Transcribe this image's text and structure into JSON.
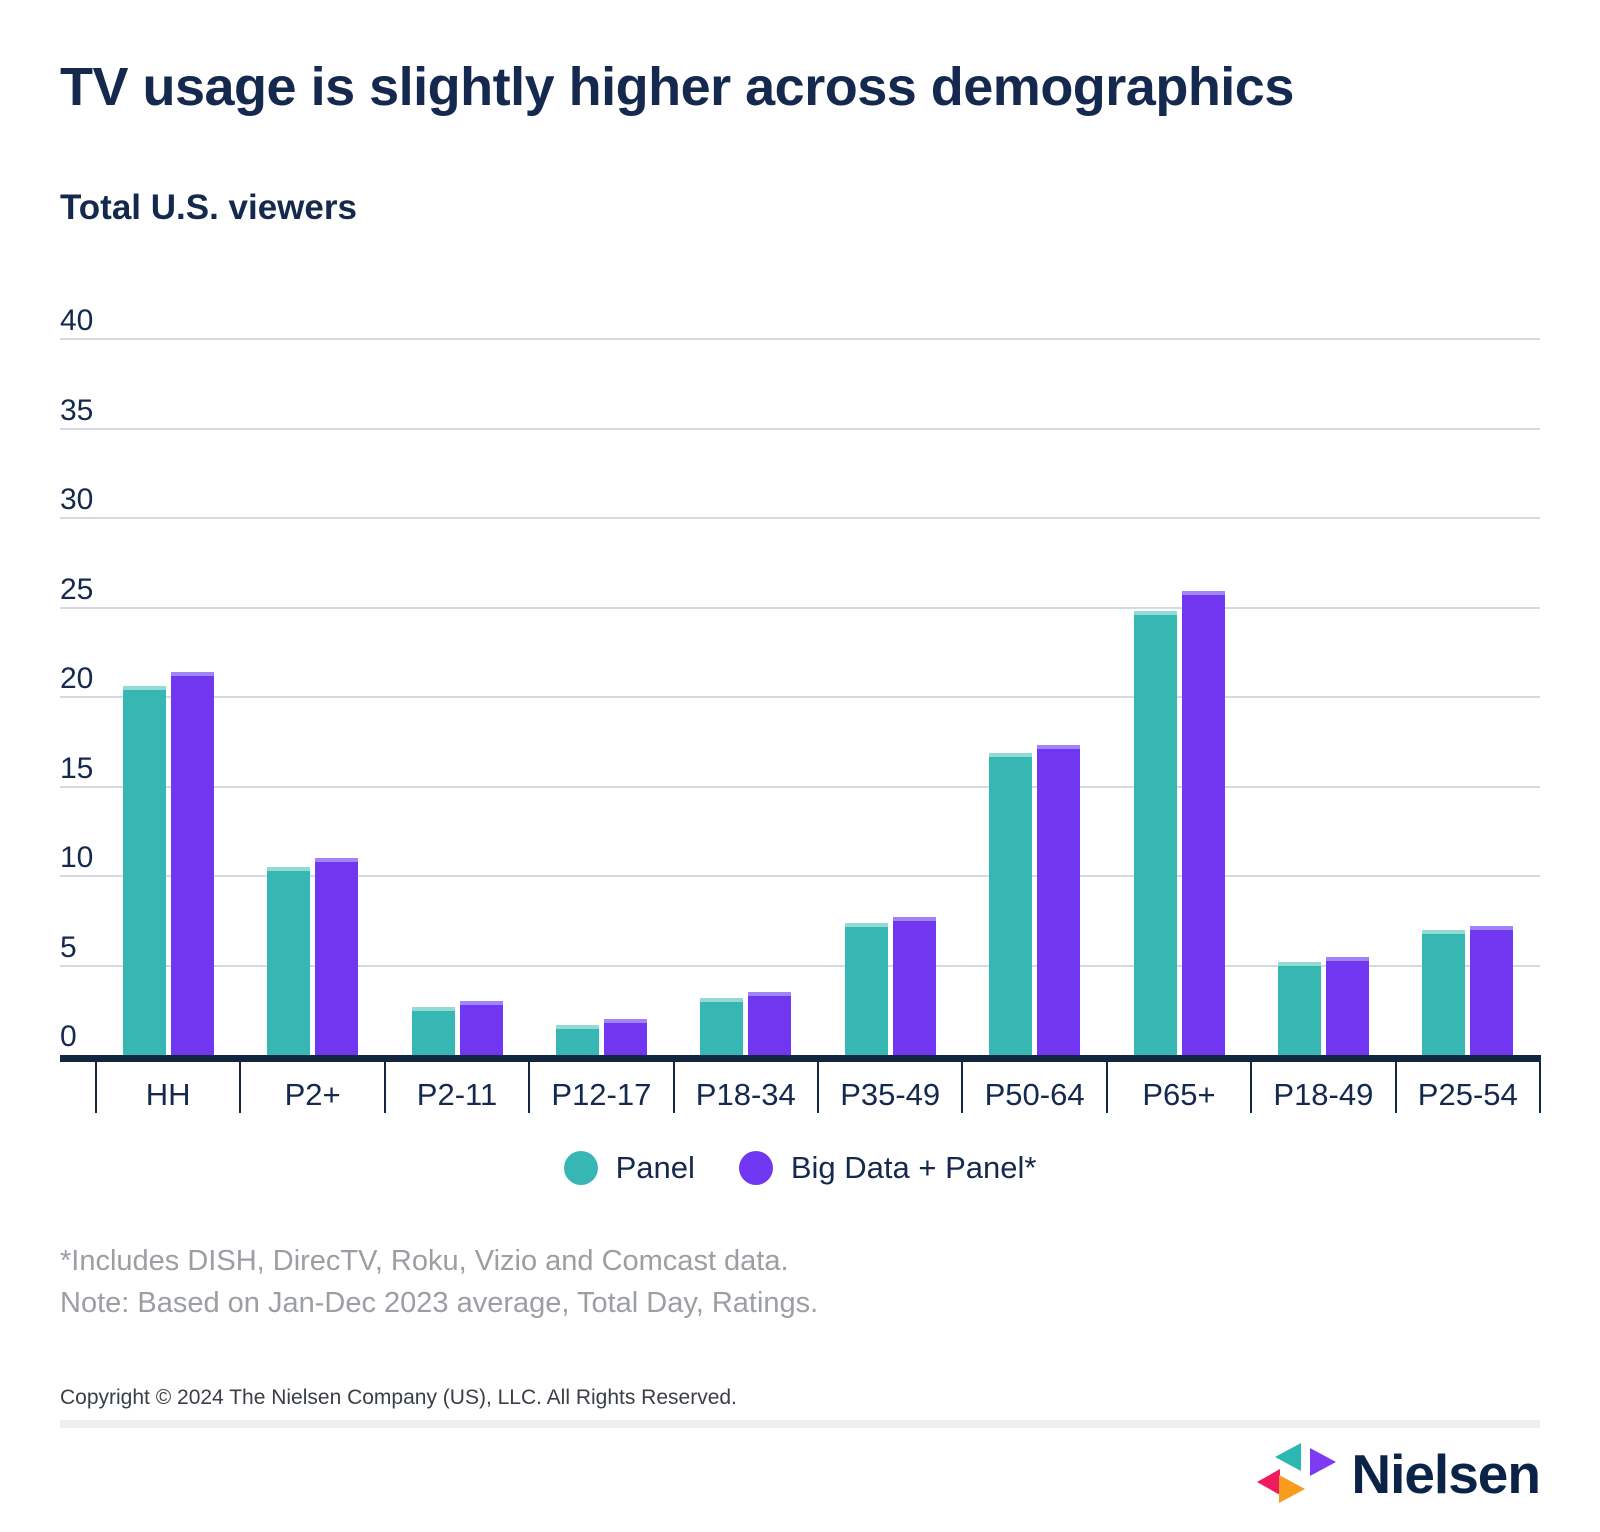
{
  "header": {
    "title": "TV usage is slightly higher across demographics",
    "subtitle": "Total U.S. viewers"
  },
  "chart_data": {
    "type": "bar",
    "title": "TV usage is slightly higher across demographics",
    "subtitle": "Total U.S. viewers",
    "categories": [
      "HH",
      "P2+",
      "P2-11",
      "P12-17",
      "P18-34",
      "P35-49",
      "P50-64",
      "P65+",
      "P18-49",
      "P25-54"
    ],
    "series": [
      {
        "name": "Panel",
        "color": "#36b7b4",
        "cap_color": "#93d9d4",
        "values": [
          20.6,
          10.5,
          2.7,
          1.7,
          3.2,
          7.4,
          16.9,
          24.8,
          5.2,
          7.0
        ]
      },
      {
        "name": "Big Data + Panel*",
        "color": "#7137f0",
        "cap_color": "#a185f6",
        "values": [
          21.4,
          11.0,
          3.0,
          2.0,
          3.5,
          7.7,
          17.3,
          25.9,
          5.5,
          7.2
        ]
      }
    ],
    "ylim": [
      0,
      40
    ],
    "yticks": [
      0,
      5,
      10,
      15,
      20,
      25,
      30,
      35,
      40
    ],
    "grid": true,
    "legend_position": "bottom",
    "xlabel": "",
    "ylabel": ""
  },
  "legend": {
    "items": [
      {
        "label": "Panel",
        "color": "#36b7b4",
        "icon": "circle-swatch-icon"
      },
      {
        "label": "Big Data + Panel*",
        "color": "#7137f0",
        "icon": "circle-swatch-icon"
      }
    ]
  },
  "footnotes": {
    "line1": "*Includes DISH, DirecTV, Roku, Vizio and Comcast data.",
    "line2": "Note: Based on Jan-Dec 2023 average, Total Day, Ratings."
  },
  "footer": {
    "copyright": "Copyright © 2024 The Nielsen Company (US), LLC. All Rights Reserved.",
    "logo_text": "Nielsen",
    "logo_colors": {
      "teal": "#2cb8b1",
      "purple": "#7c3bf2",
      "pink": "#f01a5e",
      "orange": "#f89c1e",
      "text": "#0b2347"
    }
  },
  "colors": {
    "title_navy": "#14294d",
    "axis_navy": "#12263f",
    "gridline_gray": "#d5d9e2",
    "footnote_gray": "#9b9ea3",
    "divider_gray": "#edeff2",
    "background": "#ffffff"
  }
}
